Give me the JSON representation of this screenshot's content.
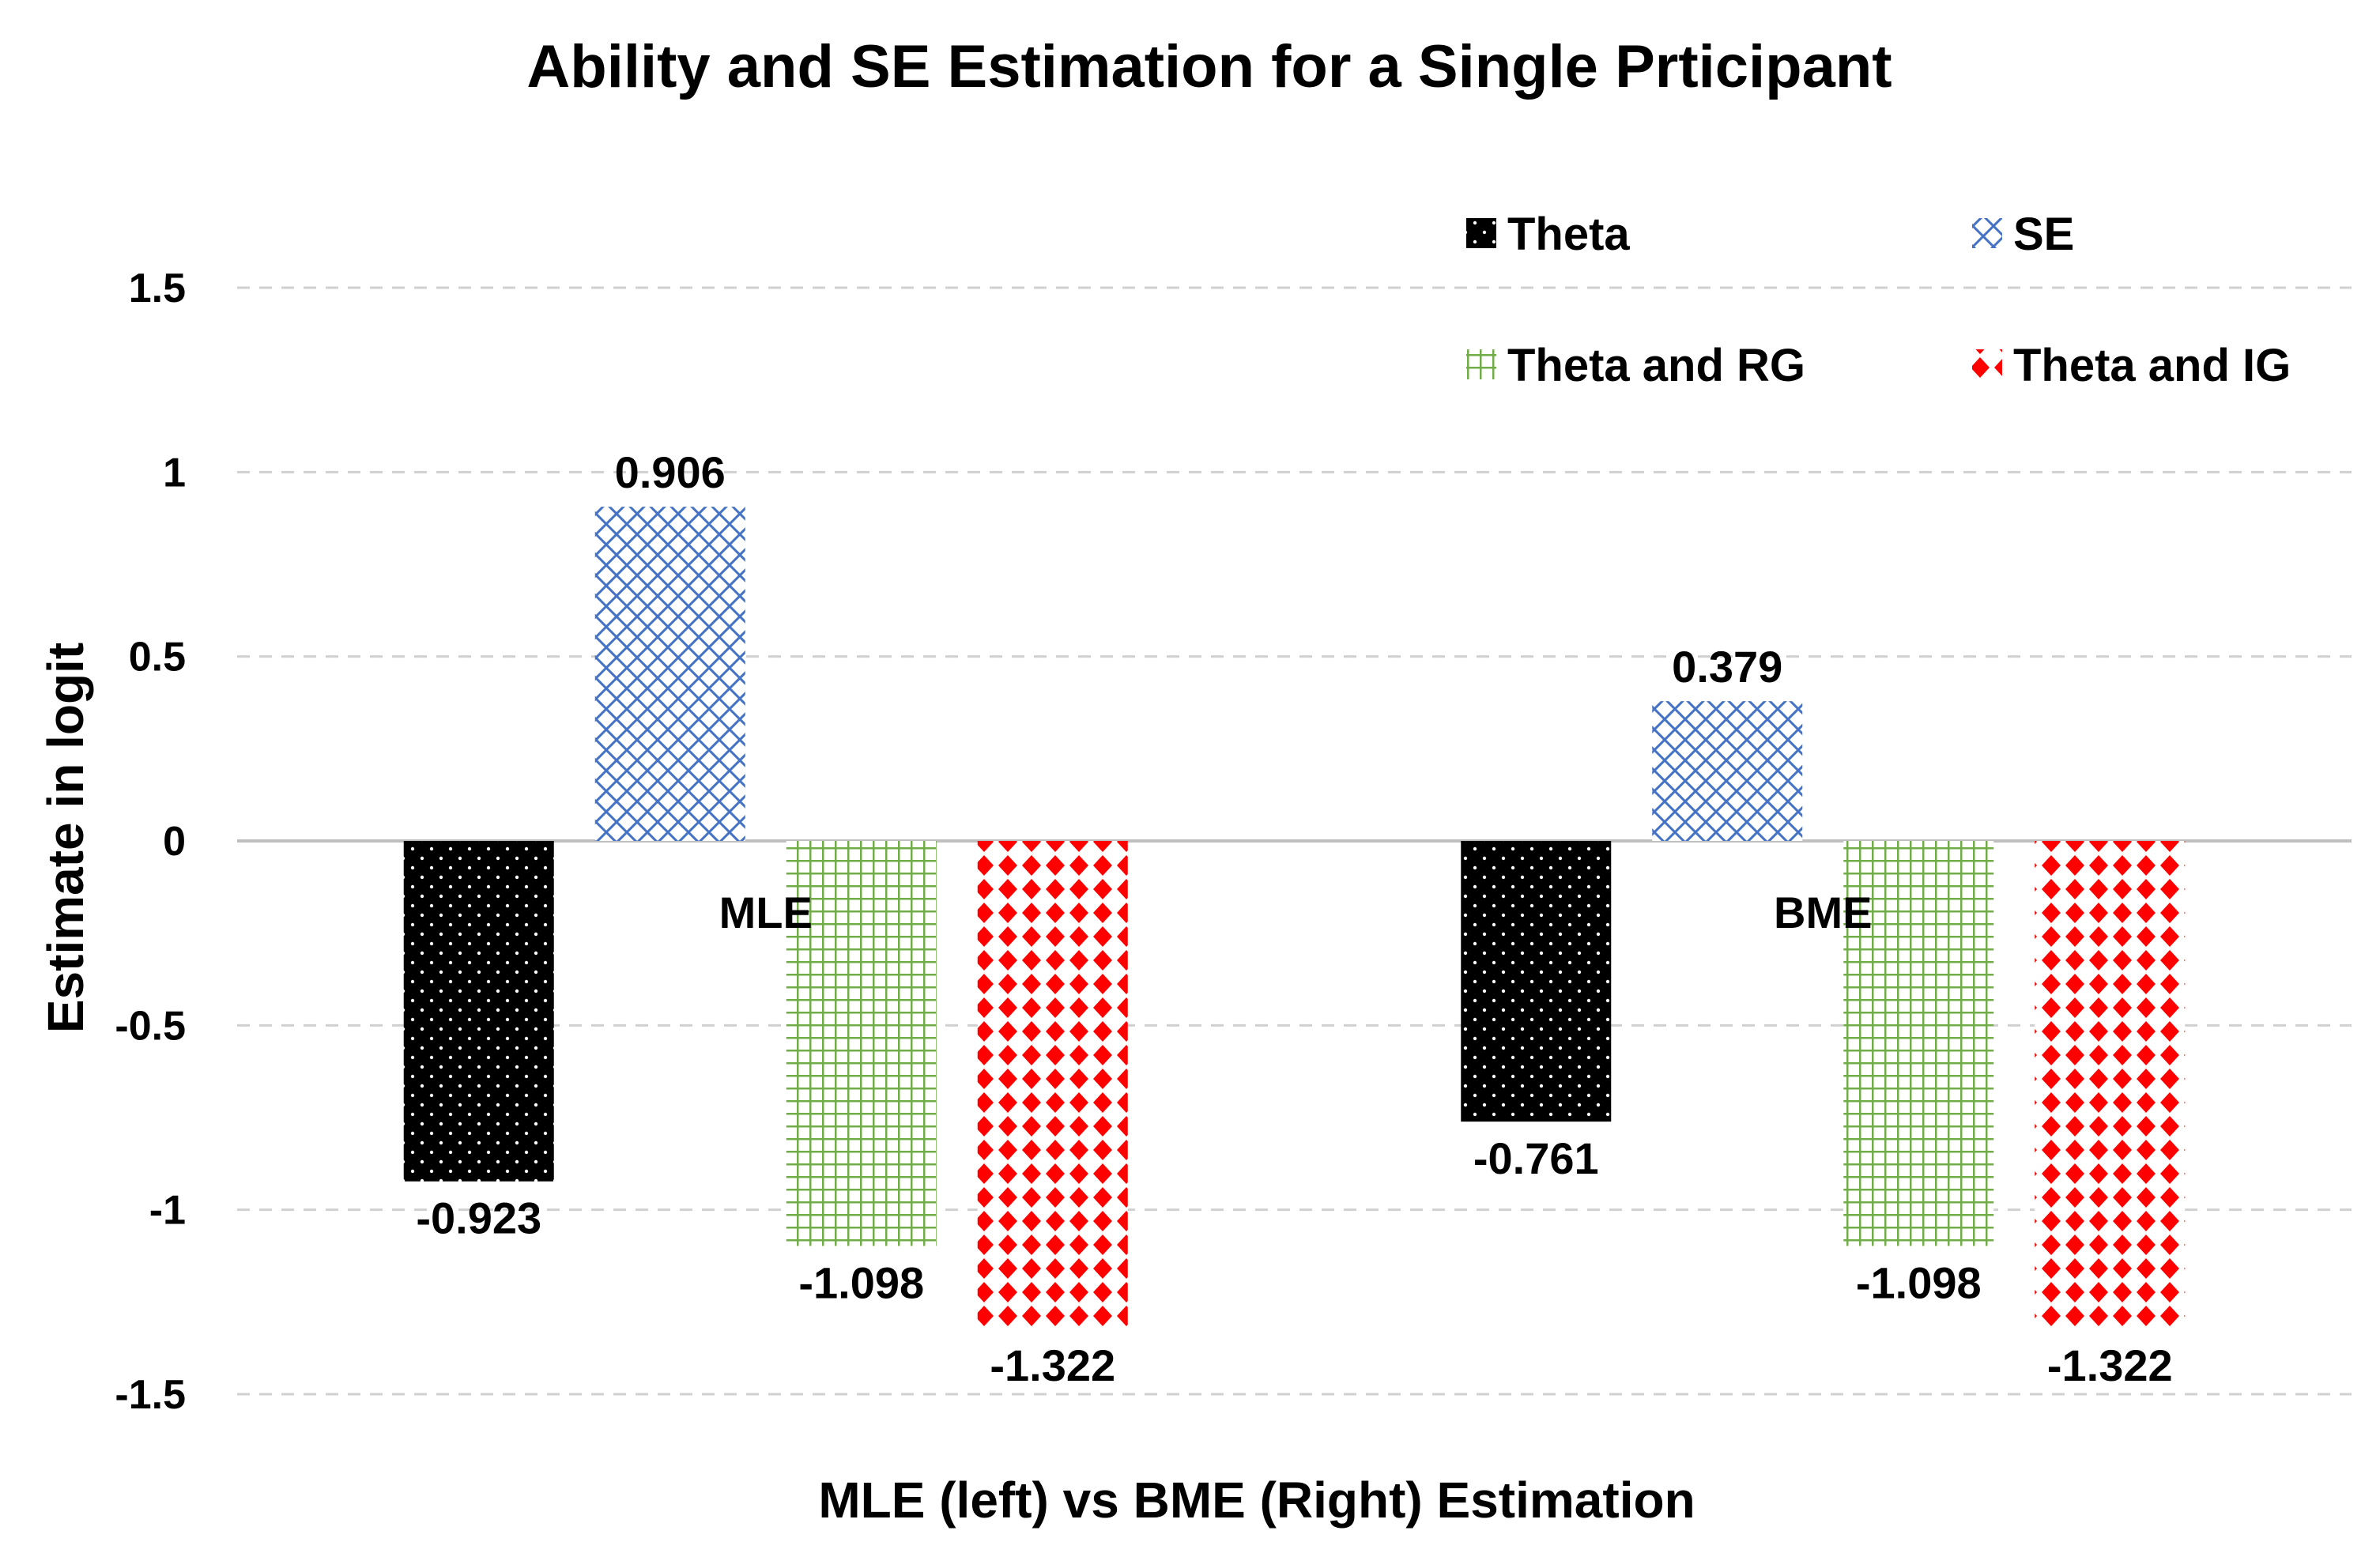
{
  "chart_data": {
    "type": "bar",
    "title": "Ability and SE Estimation for a Single Prticipant",
    "xlabel": "MLE (left) vs BME (Right) Estimation",
    "ylabel": "Estimate in logit",
    "ylim": [
      -1.5,
      1.5
    ],
    "yticks": [
      1.5,
      1,
      0.5,
      0,
      -0.5,
      -1,
      -1.5
    ],
    "ytick_labels": [
      "1.5",
      "1",
      "0.5",
      "0",
      "-0.5",
      "-1",
      "-1.5"
    ],
    "grid": true,
    "legend_position": "top-right",
    "categories": [
      "MLE",
      "BME"
    ],
    "series": [
      {
        "name": "Theta",
        "values": [
          -0.923,
          -0.761
        ],
        "labels": [
          "-0.923",
          "-0.761"
        ],
        "color": "#000000",
        "pattern": "dots"
      },
      {
        "name": "SE",
        "values": [
          0.906,
          0.379
        ],
        "labels": [
          "0.906",
          "0.379"
        ],
        "color": "#4472C4",
        "pattern": "crosshatch"
      },
      {
        "name": "Theta and RG",
        "values": [
          -1.098,
          -1.098
        ],
        "labels": [
          "-1.098",
          "-1.098"
        ],
        "color": "#70AD47",
        "pattern": "grid"
      },
      {
        "name": "Theta and IG",
        "values": [
          -1.322,
          -1.322
        ],
        "labels": [
          "-1.322",
          "-1.322"
        ],
        "color": "#FF0000",
        "pattern": "diamonds"
      }
    ]
  }
}
